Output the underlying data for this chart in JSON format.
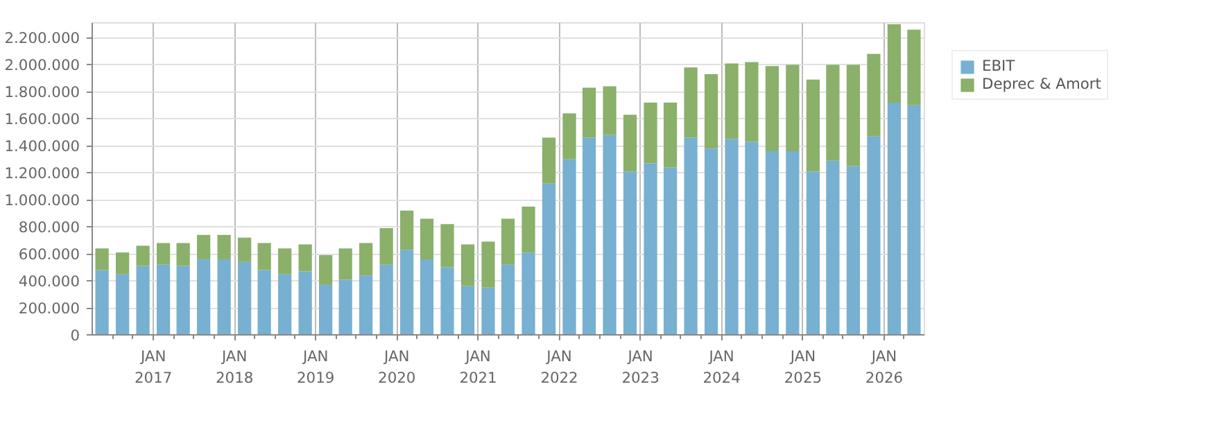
{
  "chart_data": {
    "type": "bar",
    "stacked": true,
    "x": [
      "2016-05-15",
      "2016-08-15",
      "2016-11-15",
      "2017-02-15",
      "2017-05-15",
      "2017-08-15",
      "2017-11-15",
      "2018-02-15",
      "2018-05-15",
      "2018-08-15",
      "2018-11-15",
      "2019-02-15",
      "2019-05-15",
      "2019-08-15",
      "2019-11-15",
      "2020-02-15",
      "2020-05-15",
      "2020-08-15",
      "2020-11-15",
      "2021-02-15",
      "2021-05-15",
      "2021-08-15",
      "2021-11-15",
      "2022-02-15",
      "2022-05-15",
      "2022-08-15",
      "2022-11-15",
      "2023-02-15",
      "2023-05-15",
      "2023-08-15",
      "2023-11-15",
      "2024-02-15",
      "2024-05-15",
      "2024-08-15",
      "2024-11-15",
      "2025-02-15",
      "2025-05-15",
      "2025-08-15",
      "2025-11-15",
      "2026-02-15",
      "2026-05-15"
    ],
    "series": [
      {
        "name": "EBIT",
        "color": "#77b0d1",
        "values": [
          480000,
          450000,
          510000,
          520000,
          510000,
          560000,
          560000,
          540000,
          480000,
          450000,
          470000,
          370000,
          410000,
          440000,
          520000,
          630000,
          560000,
          500000,
          360000,
          350000,
          520000,
          610000,
          1120000,
          1300000,
          1460000,
          1480000,
          1210000,
          1270000,
          1240000,
          1460000,
          1380000,
          1450000,
          1430000,
          1360000,
          1360000,
          1210000,
          1290000,
          1250000,
          1470000,
          1720000,
          1700000
        ]
      },
      {
        "name": "Deprec & Amort",
        "color": "#8ab06a",
        "values": [
          160000,
          160000,
          150000,
          160000,
          170000,
          180000,
          180000,
          180000,
          200000,
          190000,
          200000,
          220000,
          230000,
          240000,
          270000,
          290000,
          300000,
          320000,
          310000,
          340000,
          340000,
          340000,
          340000,
          340000,
          370000,
          360000,
          420000,
          450000,
          480000,
          520000,
          550000,
          560000,
          590000,
          630000,
          640000,
          680000,
          710000,
          750000,
          610000,
          580000,
          560000
        ]
      }
    ],
    "xlim": [
      "2016-04-01",
      "2026-07-01"
    ],
    "xticks": [
      {
        "value": "2016-07-01",
        "label": null
      },
      {
        "value": "2016-10-01",
        "label": null
      },
      {
        "value": "2017-01-01",
        "label": "JAN\n2017"
      },
      {
        "value": "2017-04-01",
        "label": null
      },
      {
        "value": "2017-07-01",
        "label": null
      },
      {
        "value": "2017-10-01",
        "label": null
      },
      {
        "value": "2018-01-01",
        "label": "JAN\n2018"
      },
      {
        "value": "2018-04-01",
        "label": null
      },
      {
        "value": "2018-07-01",
        "label": null
      },
      {
        "value": "2018-10-01",
        "label": null
      },
      {
        "value": "2019-01-01",
        "label": "JAN\n2019"
      },
      {
        "value": "2019-04-01",
        "label": null
      },
      {
        "value": "2019-07-01",
        "label": null
      },
      {
        "value": "2019-10-01",
        "label": null
      },
      {
        "value": "2020-01-01",
        "label": "JAN\n2020"
      },
      {
        "value": "2020-04-01",
        "label": null
      },
      {
        "value": "2020-07-01",
        "label": null
      },
      {
        "value": "2020-10-01",
        "label": null
      },
      {
        "value": "2021-01-01",
        "label": "JAN\n2021"
      },
      {
        "value": "2021-04-01",
        "label": null
      },
      {
        "value": "2021-07-01",
        "label": null
      },
      {
        "value": "2021-10-01",
        "label": null
      },
      {
        "value": "2022-01-01",
        "label": "JAN\n2022"
      },
      {
        "value": "2022-04-01",
        "label": null
      },
      {
        "value": "2022-07-01",
        "label": null
      },
      {
        "value": "2022-10-01",
        "label": null
      },
      {
        "value": "2023-01-01",
        "label": "JAN\n2023"
      },
      {
        "value": "2023-04-01",
        "label": null
      },
      {
        "value": "2023-07-01",
        "label": null
      },
      {
        "value": "2023-10-01",
        "label": null
      },
      {
        "value": "2024-01-01",
        "label": "JAN\n2024"
      },
      {
        "value": "2024-04-01",
        "label": null
      },
      {
        "value": "2024-07-01",
        "label": null
      },
      {
        "value": "2024-10-01",
        "label": null
      },
      {
        "value": "2025-01-01",
        "label": "JAN\n2025"
      },
      {
        "value": "2025-04-01",
        "label": null
      },
      {
        "value": "2025-07-01",
        "label": null
      },
      {
        "value": "2025-10-01",
        "label": null
      },
      {
        "value": "2026-01-01",
        "label": "JAN\n2026"
      },
      {
        "value": "2026-04-01",
        "label": null
      }
    ],
    "ylim": [
      0,
      2310000
    ],
    "yticks": [
      0,
      {
        "value": 200000,
        "label": "200.000"
      },
      {
        "value": 400000,
        "label": "400.000"
      },
      {
        "value": 600000,
        "label": "600.000"
      },
      {
        "value": 800000,
        "label": "800.000"
      },
      {
        "value": 1000000,
        "label": "1.000.000"
      },
      {
        "value": 1200000,
        "label": "1.200.000"
      },
      {
        "value": 1400000,
        "label": "1.400.000"
      },
      {
        "value": 1600000,
        "label": "1.600.000"
      },
      {
        "value": 1800000,
        "label": "1.800.000"
      },
      {
        "value": 2000000,
        "label": "2.000.000"
      },
      {
        "value": 2200000,
        "label": "2.200.000"
      }
    ],
    "grid": true,
    "legend": "top right"
  }
}
